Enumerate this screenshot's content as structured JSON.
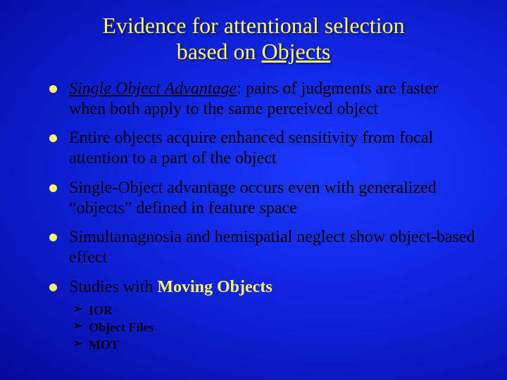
{
  "slide": {
    "title_line1": "Evidence for attentional selection",
    "title_line2_prefix": "based on ",
    "title_line2_underlined": "Objects",
    "title_color": "#ffff66",
    "text_color": "#000000",
    "bullet_color": "#ffff66",
    "background_gradient_center": "#1a3aff",
    "background_gradient_edge": "#010258",
    "title_fontsize": 32,
    "body_fontsize": 24,
    "sub_fontsize": 18
  },
  "items": [
    {
      "lead": "Single Object Advantage",
      "lead_style": "italic-underline",
      "rest": ": pairs of judgments are faster when both apply to the same perceived object"
    },
    {
      "rest": "Entire objects acquire enhanced sensitivity from focal attention to a part of the object"
    },
    {
      "rest": "Single-Object advantage occurs even with generalized “objects” defined in feature space"
    },
    {
      "rest": "Simultanagnosia and hemispatial neglect show object-based effect"
    },
    {
      "prefix": "Studies with ",
      "keyword": "Moving Objects",
      "sub": [
        "IOR",
        "Object Files",
        "MOT"
      ]
    }
  ]
}
